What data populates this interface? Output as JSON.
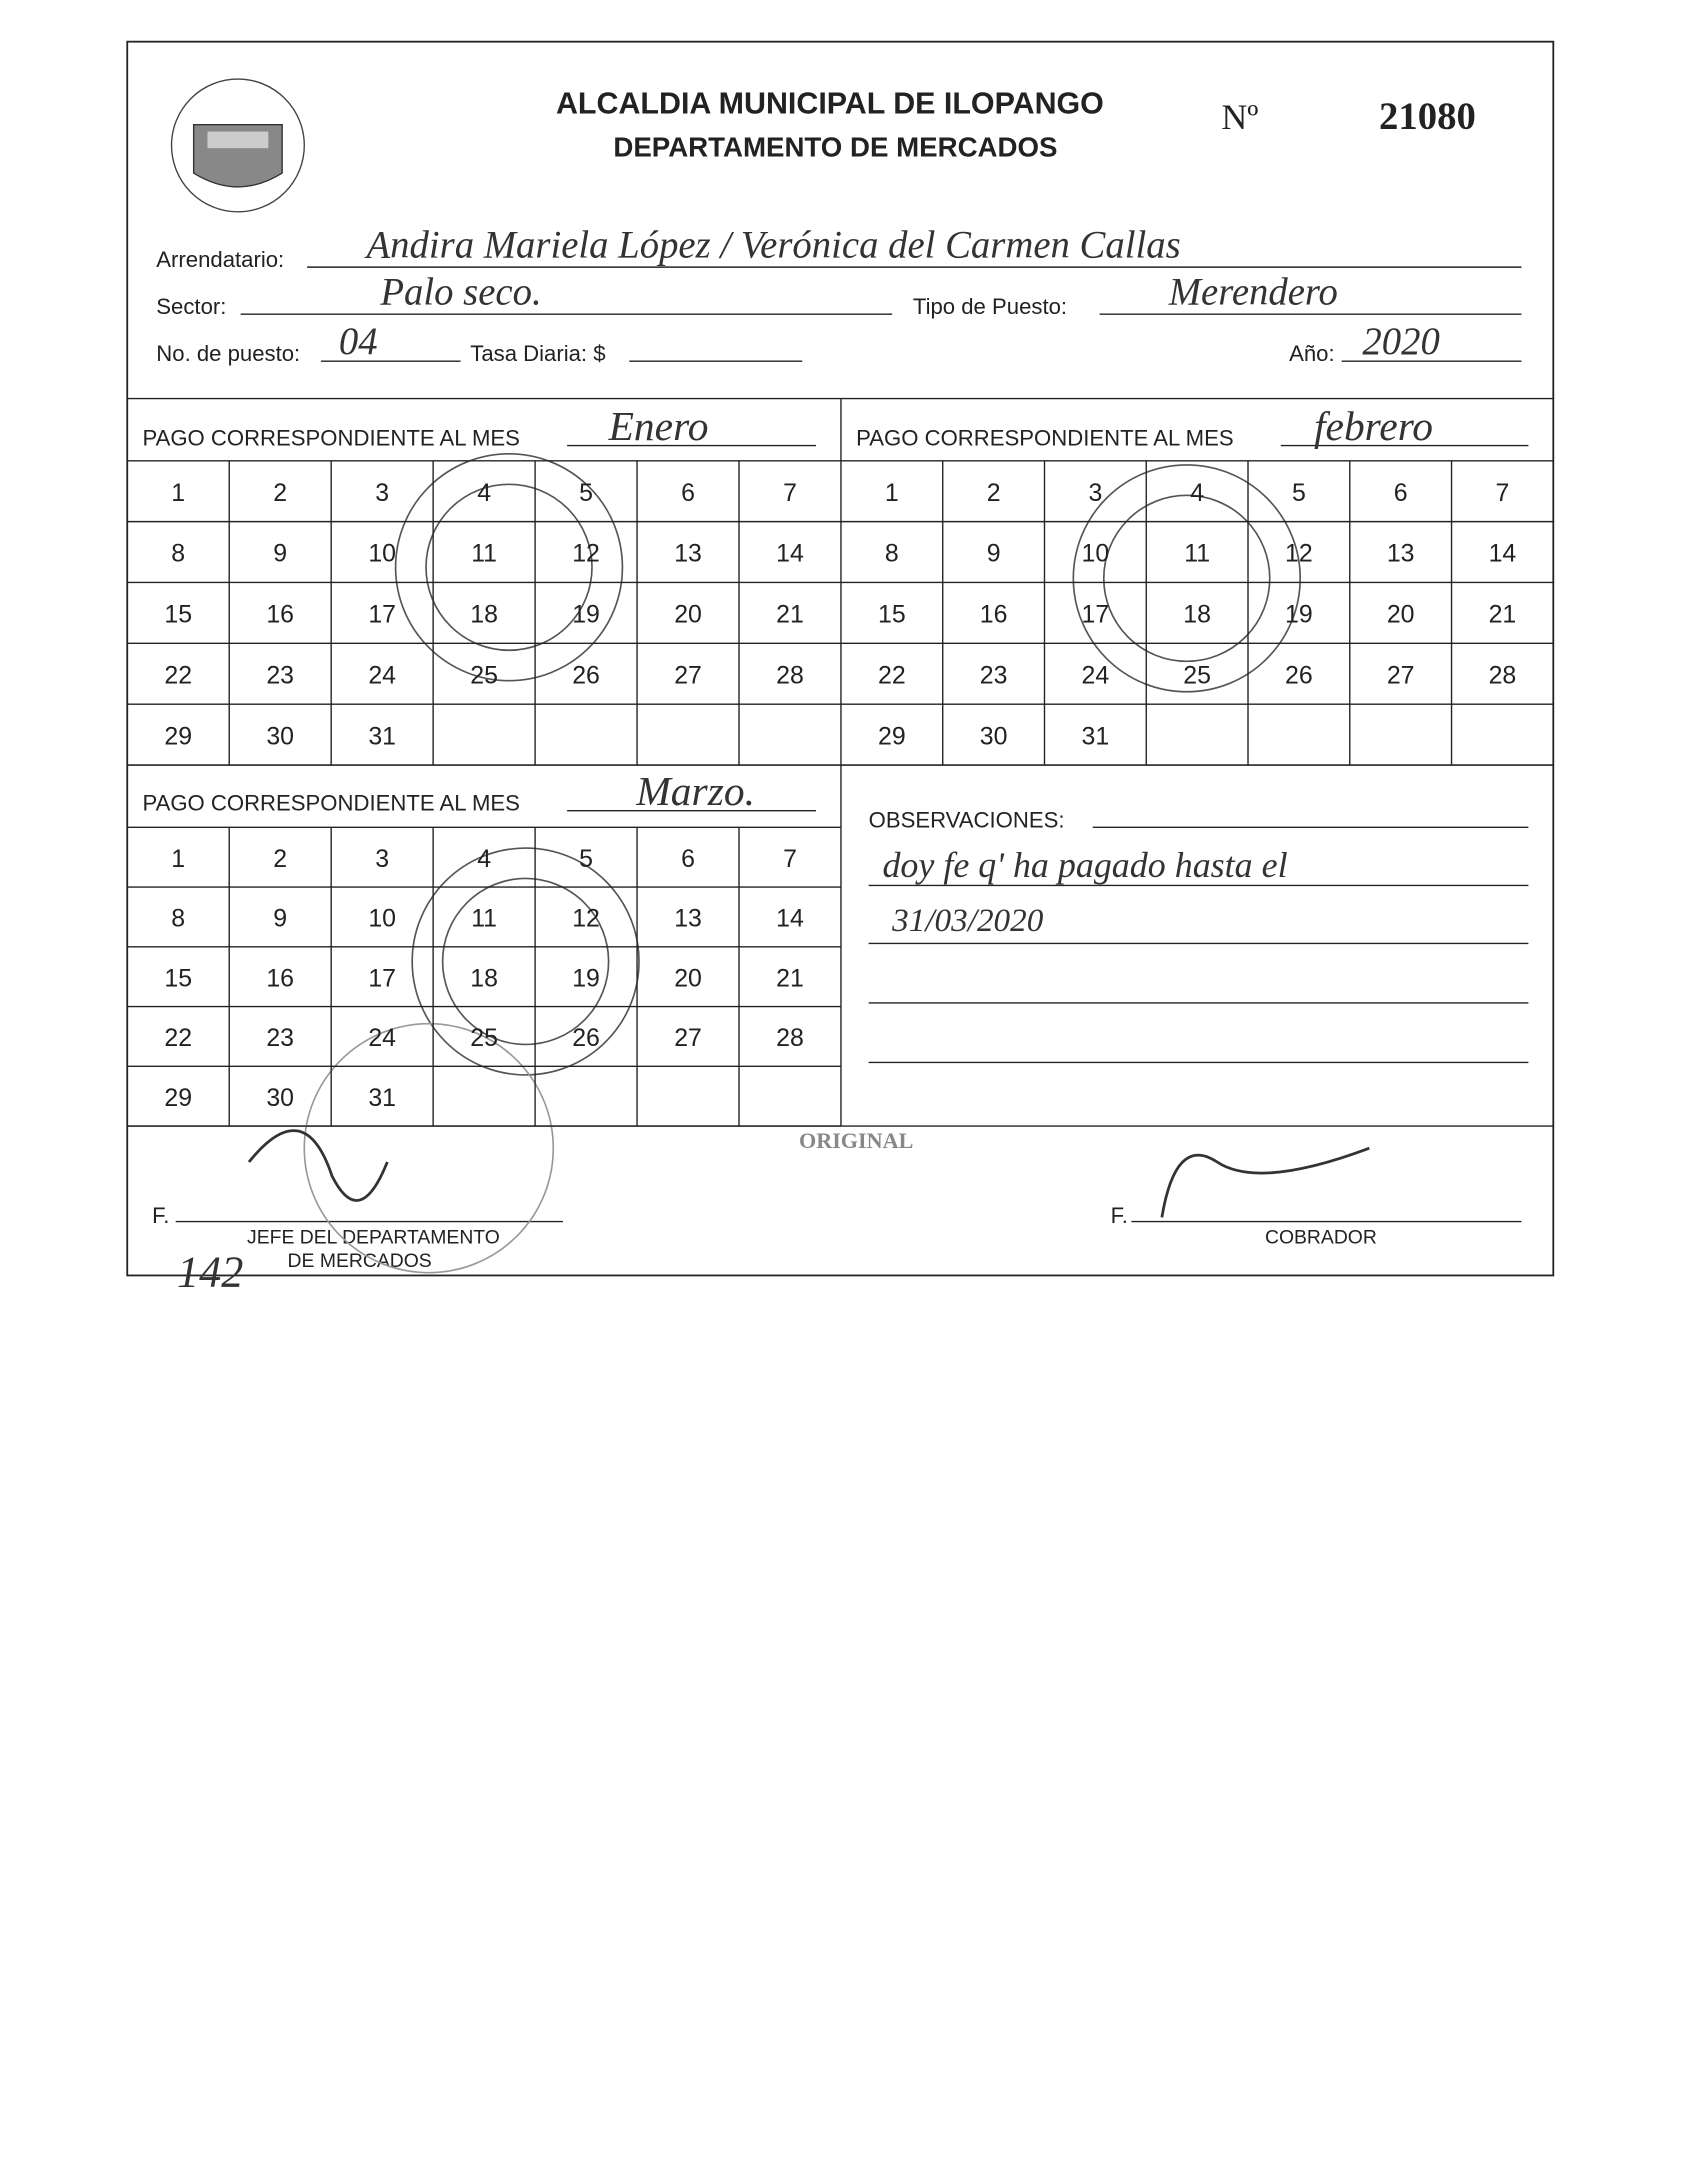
{
  "header": {
    "title": "ALCALDIA MUNICIPAL DE ILOPANGO",
    "subtitle": "DEPARTAMENTO DE MERCADOS",
    "number_label": "Nº",
    "number": "21080"
  },
  "fields": {
    "arrendatario": {
      "label": "Arrendatario:",
      "value": "Andira Mariela López / Verónica del Carmen Callas"
    },
    "sector": {
      "label": "Sector:",
      "value": "Palo seco."
    },
    "tipo_puesto": {
      "label": "Tipo de Puesto:",
      "value": "Merendero"
    },
    "no_puesto": {
      "label": "No. de puesto:",
      "value": "04"
    },
    "tasa_diaria": {
      "label": "Tasa Diaria: $"
    },
    "anio": {
      "label": "Año:",
      "value": "2020"
    }
  },
  "months": [
    {
      "label": "PAGO CORRESPONDIENTE AL MES",
      "value": "Enero",
      "days": [
        1,
        2,
        3,
        4,
        5,
        6,
        7,
        8,
        9,
        10,
        11,
        12,
        13,
        14,
        15,
        16,
        17,
        18,
        19,
        20,
        21,
        22,
        23,
        24,
        25,
        26,
        27,
        28,
        29,
        30,
        31
      ]
    },
    {
      "label": "PAGO CORRESPONDIENTE AL MES",
      "value": "febrero",
      "days": [
        1,
        2,
        3,
        4,
        5,
        6,
        7,
        8,
        9,
        10,
        11,
        12,
        13,
        14,
        15,
        16,
        17,
        18,
        19,
        20,
        21,
        22,
        23,
        24,
        25,
        26,
        27,
        28,
        29,
        30,
        31
      ]
    },
    {
      "label": "PAGO CORRESPONDIENTE AL MES",
      "value": "Marzo.",
      "days": [
        1,
        2,
        3,
        4,
        5,
        6,
        7,
        8,
        9,
        10,
        11,
        12,
        13,
        14,
        15,
        16,
        17,
        18,
        19,
        20,
        21,
        22,
        23,
        24,
        25,
        26,
        27,
        28,
        29,
        30,
        31
      ]
    }
  ],
  "observaciones": {
    "label": "OBSERVACIONES:",
    "lines": [
      "doy fe q' ha pagado hasta el",
      "31/03/2020"
    ]
  },
  "footer": {
    "original": "ORIGINAL",
    "sign_left_prefix": "F.",
    "sign_left_title": [
      "JEFE DEL DEPARTAMENTO",
      "DE MERCADOS"
    ],
    "sign_right_prefix": "F.",
    "sign_right_title": "COBRADOR",
    "handwritten_number": "142"
  }
}
